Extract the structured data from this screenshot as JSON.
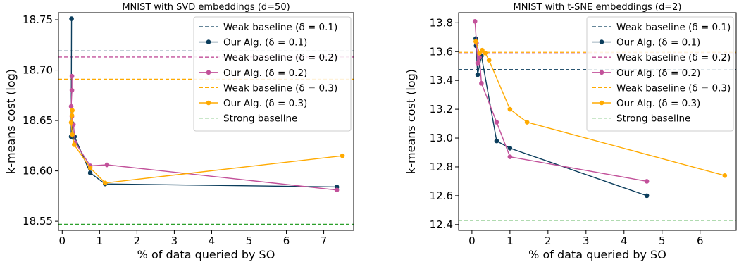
{
  "colors": {
    "d01": "#0b3d5c",
    "d02": "#c2519a",
    "d03": "#ffaa00",
    "strong": "#2ca02c"
  },
  "chart_data": [
    {
      "type": "line",
      "title": "MNIST with SVD embeddings (d=50)",
      "xlabel": "% of data queried by SO",
      "ylabel": "k-means cost (log)",
      "xlim": [
        -0.1,
        7.8
      ],
      "ylim": [
        18.541,
        18.757
      ],
      "xticks": [
        0,
        1,
        2,
        3,
        4,
        5,
        6,
        7
      ],
      "yticks": [
        18.55,
        18.6,
        18.65,
        18.7,
        18.75
      ],
      "ytick_labels": [
        "18.55",
        "18.60",
        "18.65",
        "18.70",
        "18.75"
      ],
      "legend_position": "top-right",
      "legend": [
        "Weak baseline (δ = 0.1)",
        "Our Alg. (δ = 0.1)",
        "Weak baseline (δ = 0.2)",
        "Our Alg. (δ = 0.2)",
        "Weak baseline (δ = 0.3)",
        "Our Alg. (δ = 0.3)",
        "Strong baseline"
      ],
      "baselines": [
        {
          "label": "Weak baseline (δ = 0.1)",
          "y": 18.719,
          "color": "#0b3d5c"
        },
        {
          "label": "Weak baseline (δ = 0.2)",
          "y": 18.713,
          "color": "#c2519a"
        },
        {
          "label": "Weak baseline (δ = 0.3)",
          "y": 18.691,
          "color": "#ffaa00"
        },
        {
          "label": "Strong baseline",
          "y": 18.547,
          "color": "#2ca02c"
        }
      ],
      "series": [
        {
          "label": "Our Alg. (δ = 0.1)",
          "color": "#0b3d5c",
          "x": [
            0.25,
            0.24,
            0.27,
            0.3,
            0.33,
            0.75,
            1.15,
            7.35
          ],
          "y": [
            18.751,
            18.634,
            18.647,
            18.633,
            18.634,
            18.598,
            18.587,
            18.584
          ]
        },
        {
          "label": "Our Alg. (δ = 0.2)",
          "color": "#c2519a",
          "x": [
            0.26,
            0.26,
            0.24,
            0.26,
            0.3,
            0.35,
            0.75,
            1.2,
            7.35
          ],
          "y": [
            18.694,
            18.68,
            18.664,
            18.654,
            18.646,
            18.628,
            18.605,
            18.606,
            18.581
          ]
        },
        {
          "label": "Our Alg. (δ = 0.3)",
          "color": "#ffaa00",
          "x": [
            0.27,
            0.26,
            0.24,
            0.27,
            0.32,
            0.75,
            1.15,
            7.5
          ],
          "y": [
            18.66,
            18.655,
            18.648,
            18.636,
            18.626,
            18.603,
            18.588,
            18.615
          ]
        }
      ]
    },
    {
      "type": "line",
      "title": "MNIST with t-SNE embeddings (d=2)",
      "xlabel": "% of data queried by SO",
      "ylabel": "k-means cost (log)",
      "xlim": [
        -0.35,
        6.95
      ],
      "ylim": [
        12.36,
        13.87
      ],
      "xticks": [
        0,
        1,
        2,
        3,
        4,
        5,
        6
      ],
      "yticks": [
        12.4,
        12.6,
        12.8,
        13.0,
        13.2,
        13.4,
        13.6,
        13.8
      ],
      "ytick_labels": [
        "12.4",
        "12.6",
        "12.8",
        "13.0",
        "13.2",
        "13.4",
        "13.6",
        "13.8"
      ],
      "legend_position": "top-right",
      "legend": [
        "Weak baseline (δ = 0.1)",
        "Our Alg. (δ = 0.1)",
        "Weak baseline (δ = 0.2)",
        "Our Alg. (δ = 0.2)",
        "Weak baseline (δ = 0.3)",
        "Our Alg. (δ = 0.3)",
        "Strong baseline"
      ],
      "baselines": [
        {
          "label": "Weak baseline (δ = 0.1)",
          "y": 13.475,
          "color": "#0b3d5c"
        },
        {
          "label": "Weak baseline (δ = 0.2)",
          "y": 13.585,
          "color": "#c2519a"
        },
        {
          "label": "Weak baseline (δ = 0.3)",
          "y": 13.595,
          "color": "#ffaa00"
        },
        {
          "label": "Strong baseline",
          "y": 12.43,
          "color": "#2ca02c"
        }
      ],
      "series": [
        {
          "label": "Our Alg. (δ = 0.1)",
          "color": "#0b3d5c",
          "x": [
            0.1,
            0.11,
            0.15,
            0.25,
            0.65,
            1.0,
            4.6
          ],
          "y": [
            13.69,
            13.64,
            13.44,
            13.57,
            12.98,
            12.93,
            12.6
          ]
        },
        {
          "label": "Our Alg. (δ = 0.2)",
          "color": "#c2519a",
          "x": [
            0.08,
            0.12,
            0.15,
            0.2,
            0.25,
            0.65,
            1.0,
            4.6
          ],
          "y": [
            13.81,
            13.66,
            13.52,
            13.56,
            13.38,
            13.11,
            12.87,
            12.7
          ]
        },
        {
          "label": "Our Alg. (δ = 0.3)",
          "color": "#ffaa00",
          "x": [
            0.1,
            0.2,
            0.27,
            0.35,
            0.45,
            1.0,
            1.45,
            6.65
          ],
          "y": [
            13.67,
            13.59,
            13.61,
            13.59,
            13.54,
            13.2,
            13.11,
            12.74
          ]
        }
      ]
    }
  ]
}
